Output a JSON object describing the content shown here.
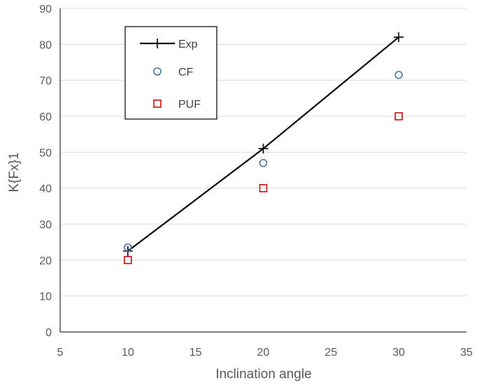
{
  "chart_data": {
    "type": "scatter",
    "title": "",
    "xlabel": "Inclination angle",
    "ylabel": "K{Fx}1",
    "xlim": [
      5,
      35
    ],
    "ylim": [
      0,
      90
    ],
    "xticks": [
      5,
      10,
      15,
      20,
      25,
      30,
      35
    ],
    "yticks": [
      0,
      10,
      20,
      30,
      40,
      50,
      60,
      70,
      80,
      90
    ],
    "grid": "horizontal",
    "legend_position": "top-left",
    "series": [
      {
        "name": "Exp",
        "style": "line-plus",
        "color": "#000000",
        "x": [
          10,
          20,
          30
        ],
        "y": [
          22.5,
          51,
          82
        ]
      },
      {
        "name": "CF",
        "style": "open-circle",
        "color": "#41719C",
        "x": [
          10,
          20,
          30
        ],
        "y": [
          23.5,
          47,
          71.5
        ]
      },
      {
        "name": "PUF",
        "style": "open-square",
        "color": "#C00000",
        "x": [
          10,
          20,
          30
        ],
        "y": [
          20,
          40,
          60
        ]
      }
    ]
  }
}
